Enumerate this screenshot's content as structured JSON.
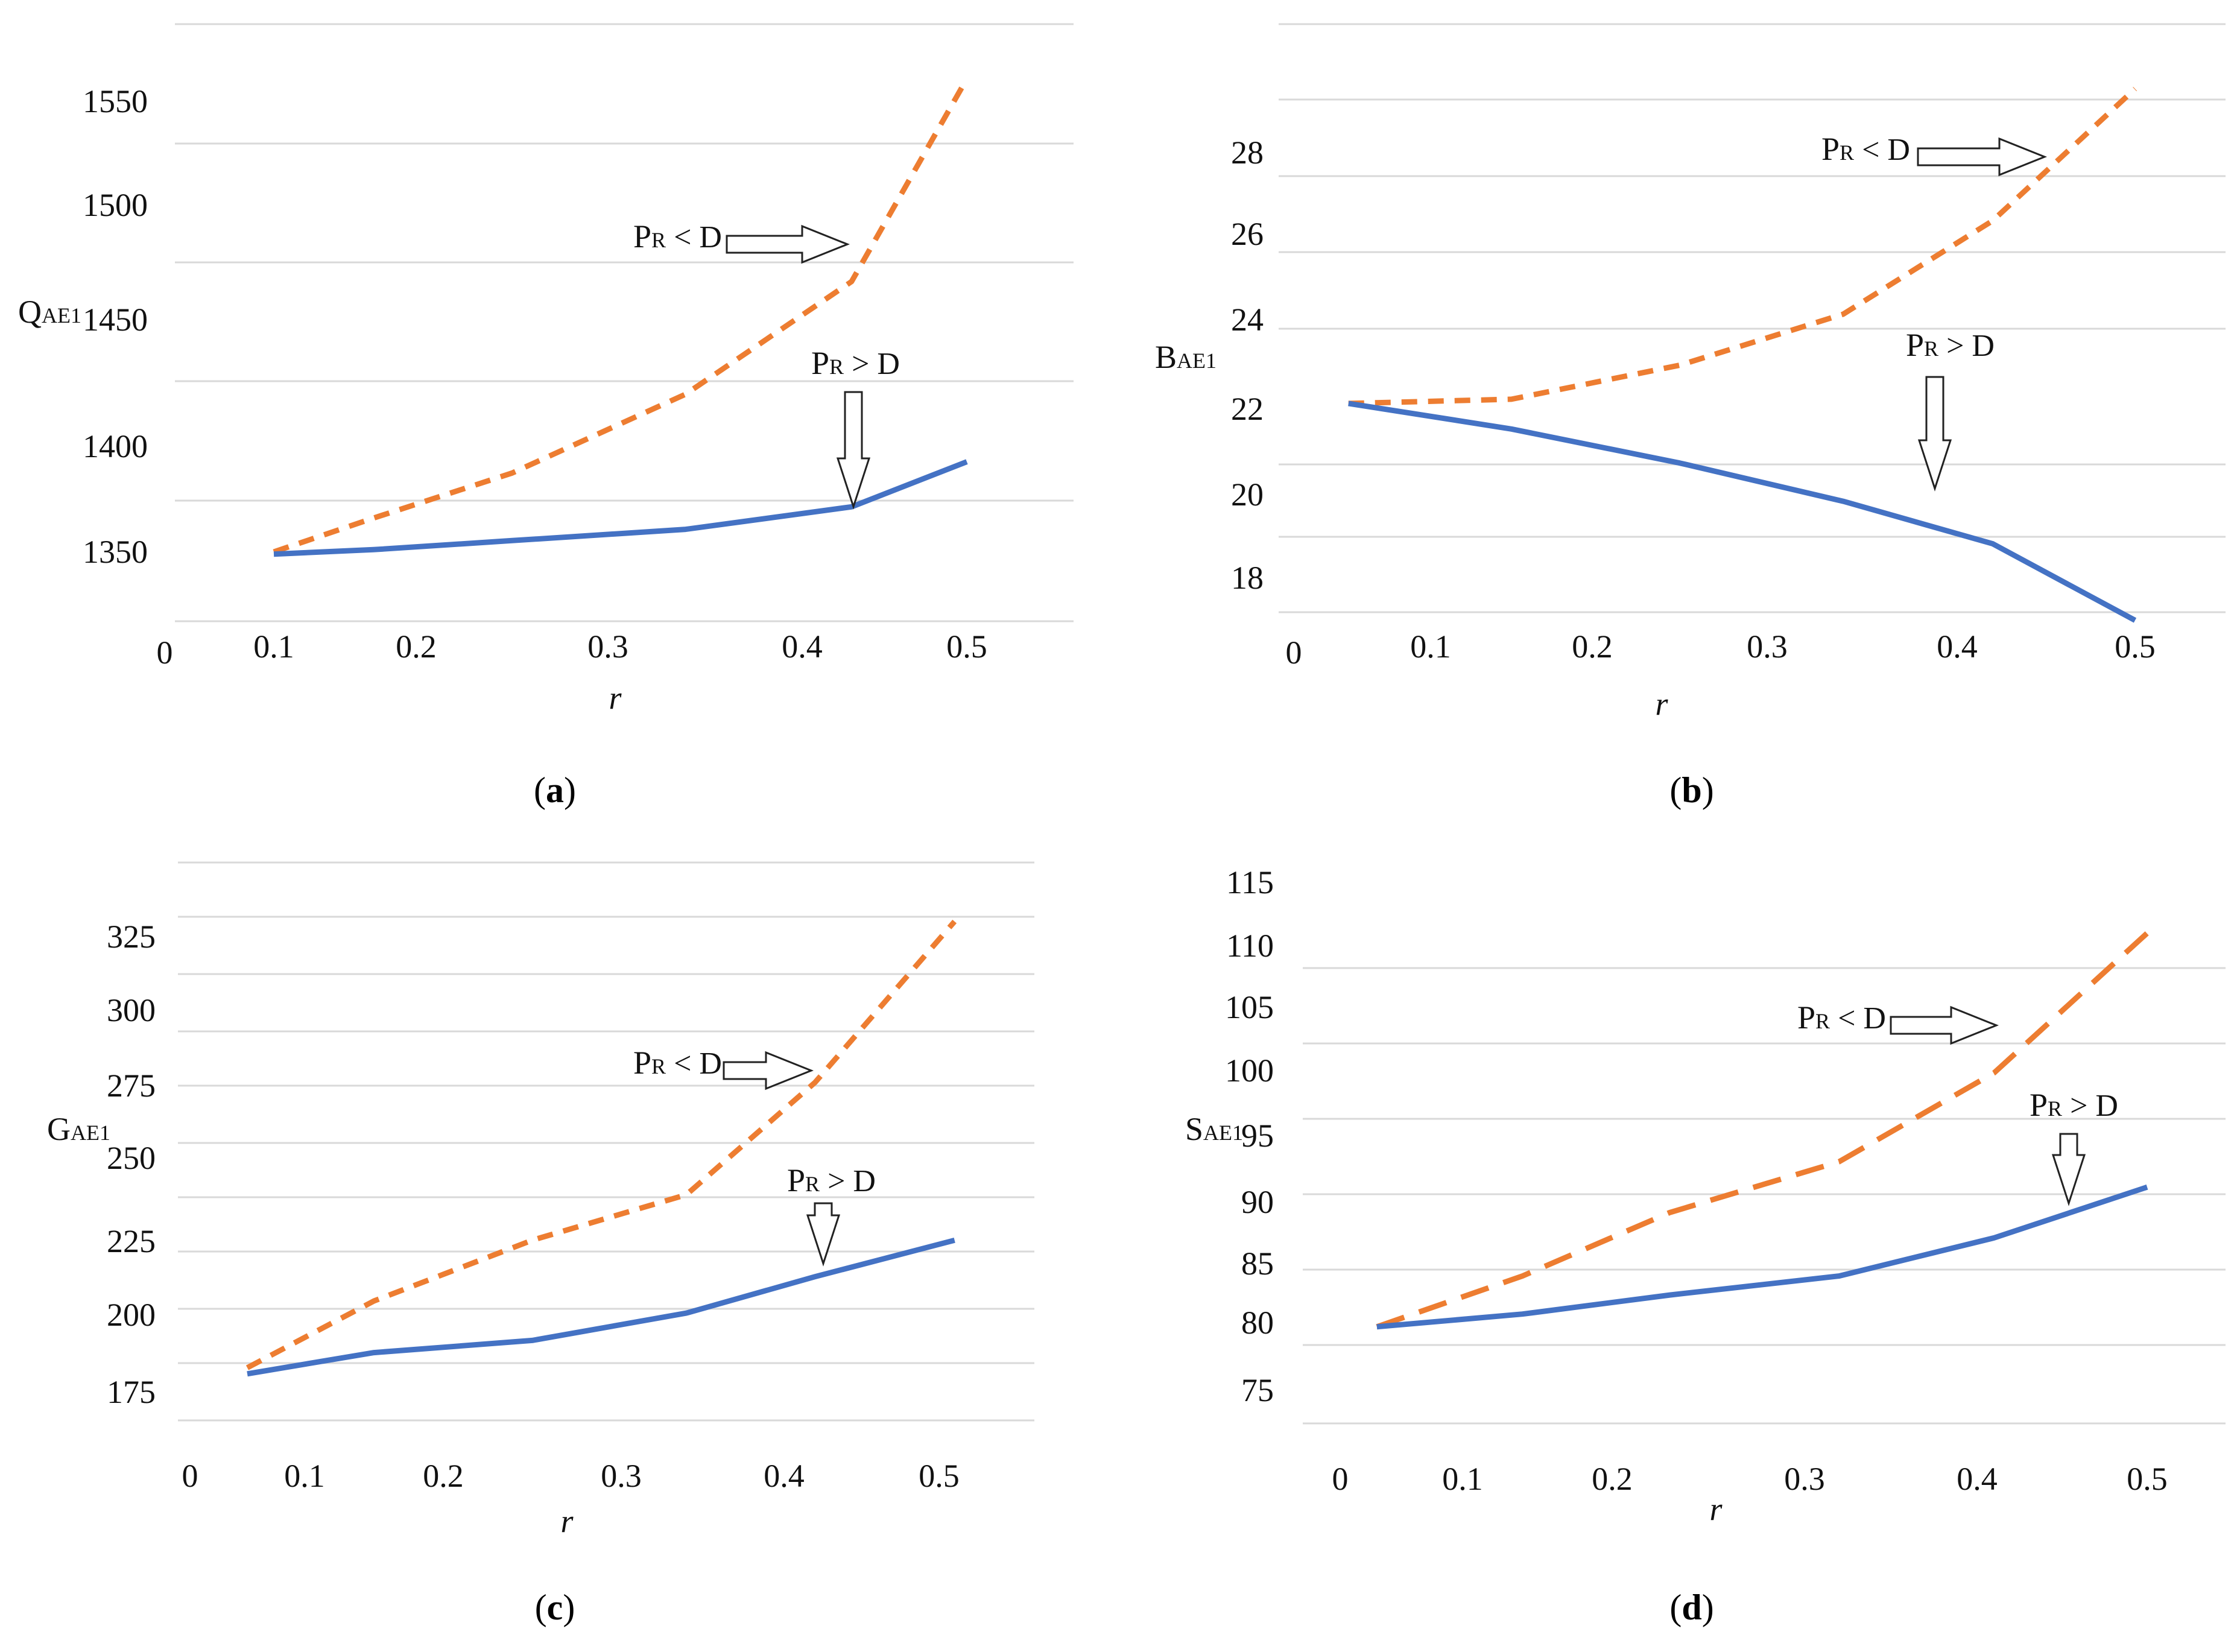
{
  "colors": {
    "pr_less_d": "#ED7D31",
    "pr_greater_d": "#4472C4",
    "gridline": "#D9D9D9"
  },
  "chart_data": [
    {
      "panel": "a",
      "caption_letter": "a",
      "type": "line",
      "xlabel": "r",
      "ylabel_main": "Q",
      "ylabel_sub": "AE1",
      "x_origin_label": "0",
      "x_ticks": [
        0.1,
        0.2,
        0.3,
        0.4,
        0.5
      ],
      "x_tick_labels": [
        "0.1",
        "0.2",
        "0.3",
        "0.4",
        "0.5"
      ],
      "y_ticks": [
        1350,
        1400,
        1450,
        1500,
        1550
      ],
      "y_tick_labels": [
        "1350",
        "1400",
        "1450",
        "1500",
        "1550"
      ],
      "series": [
        {
          "name": "PR < D",
          "style": "dashed",
          "x": [
            0.1,
            0.17,
            0.25,
            0.34,
            0.43,
            0.5
          ],
          "y": [
            1350,
            1365,
            1385,
            1420,
            1470,
            1560
          ]
        },
        {
          "name": "PR > D",
          "style": "solid",
          "x": [
            0.1,
            0.17,
            0.25,
            0.34,
            0.43,
            0.5
          ],
          "y": [
            1349,
            1351,
            1355,
            1360,
            1370,
            1390
          ]
        }
      ],
      "annotations": [
        {
          "main": "P",
          "sub": "R",
          "rest": " < D",
          "arrow": "right",
          "target": "PR < D"
        },
        {
          "main": "P",
          "sub": "R",
          "rest": " > D",
          "arrow": "down",
          "target": "PR > D"
        }
      ]
    },
    {
      "panel": "b",
      "caption_letter": "b",
      "type": "line",
      "xlabel": "r",
      "ylabel_main": "B",
      "ylabel_sub": "AE1",
      "x_origin_label": "0",
      "x_ticks": [
        0.1,
        0.2,
        0.3,
        0.4,
        0.5
      ],
      "x_tick_labels": [
        "0.1",
        "0.2",
        "0.3",
        "0.4",
        "0.5"
      ],
      "y_ticks": [
        18,
        20,
        22,
        24,
        26,
        28
      ],
      "y_tick_labels": [
        "18",
        "20",
        "22",
        "24",
        "26",
        "28"
      ],
      "series": [
        {
          "name": "PR < D",
          "style": "dashed",
          "x": [
            0.04,
            0.15,
            0.25,
            0.34,
            0.42,
            0.5
          ],
          "y": [
            22.1,
            22.2,
            23,
            24.2,
            26.4,
            29.5
          ]
        },
        {
          "name": "PR > D",
          "style": "solid",
          "x": [
            0.04,
            0.15,
            0.25,
            0.34,
            0.42,
            0.5
          ],
          "y": [
            22.1,
            21.5,
            20.7,
            19.8,
            18.8,
            17
          ]
        }
      ],
      "annotations": [
        {
          "main": "P",
          "sub": "R",
          "rest": " < D",
          "arrow": "right",
          "target": "PR < D"
        },
        {
          "main": "P",
          "sub": "R",
          "rest": " > D",
          "arrow": "down",
          "target": "PR > D"
        }
      ]
    },
    {
      "panel": "c",
      "caption_letter": "c",
      "type": "line",
      "xlabel": "r",
      "ylabel_main": "G",
      "ylabel_sub": "AE1",
      "x_origin_label": "0",
      "x_ticks": [
        0.1,
        0.2,
        0.3,
        0.4,
        0.5
      ],
      "x_tick_labels": [
        "0.1",
        "0.2",
        "0.3",
        "0.4",
        "0.5"
      ],
      "y_ticks": [
        175,
        200,
        225,
        250,
        275,
        300,
        325
      ],
      "y_tick_labels": [
        "175",
        "200",
        "225",
        "250",
        "275",
        "300",
        "325"
      ],
      "series": [
        {
          "name": "PR < D",
          "style": "dashed",
          "x": [
            0.05,
            0.15,
            0.25,
            0.34,
            0.42,
            0.51
          ],
          "y": [
            183,
            205,
            225,
            240,
            277,
            330
          ]
        },
        {
          "name": "PR > D",
          "style": "solid",
          "x": [
            0.05,
            0.15,
            0.25,
            0.34,
            0.42,
            0.51
          ],
          "y": [
            181,
            188,
            192,
            201,
            213,
            225
          ]
        }
      ],
      "annotations": [
        {
          "main": "P",
          "sub": "R",
          "rest": " < D",
          "arrow": "right",
          "target": "PR < D"
        },
        {
          "main": "P",
          "sub": "R",
          "rest": " > D",
          "arrow": "down",
          "target": "PR > D"
        }
      ]
    },
    {
      "panel": "d",
      "caption_letter": "d",
      "type": "line",
      "xlabel": "r",
      "ylabel_main": "S",
      "ylabel_sub": "AE1",
      "x_origin_label": "0",
      "x_ticks": [
        0.1,
        0.2,
        0.3,
        0.4,
        0.5
      ],
      "x_tick_labels": [
        "0.1",
        "0.2",
        "0.3",
        "0.4",
        "0.5"
      ],
      "y_ticks": [
        75,
        80,
        85,
        90,
        95,
        100,
        105,
        110,
        115
      ],
      "y_tick_labels": [
        "75",
        "80",
        "85",
        "90",
        "95",
        "100",
        "105",
        "110",
        "115"
      ],
      "series": [
        {
          "name": "PR < D",
          "style": "dashed",
          "x": [
            0.03,
            0.14,
            0.23,
            0.32,
            0.41,
            0.5
          ],
          "y": [
            80,
            84,
            89,
            93,
            100,
            111
          ]
        },
        {
          "name": "PR > D",
          "style": "solid",
          "x": [
            0.03,
            0.14,
            0.23,
            0.32,
            0.41,
            0.5
          ],
          "y": [
            80,
            81,
            82.5,
            84,
            87,
            91
          ]
        }
      ],
      "annotations": [
        {
          "main": "P",
          "sub": "R",
          "rest": " < D",
          "arrow": "right",
          "target": "PR < D"
        },
        {
          "main": "P",
          "sub": "R",
          "rest": " > D",
          "arrow": "down",
          "target": "PR > D"
        }
      ]
    }
  ]
}
